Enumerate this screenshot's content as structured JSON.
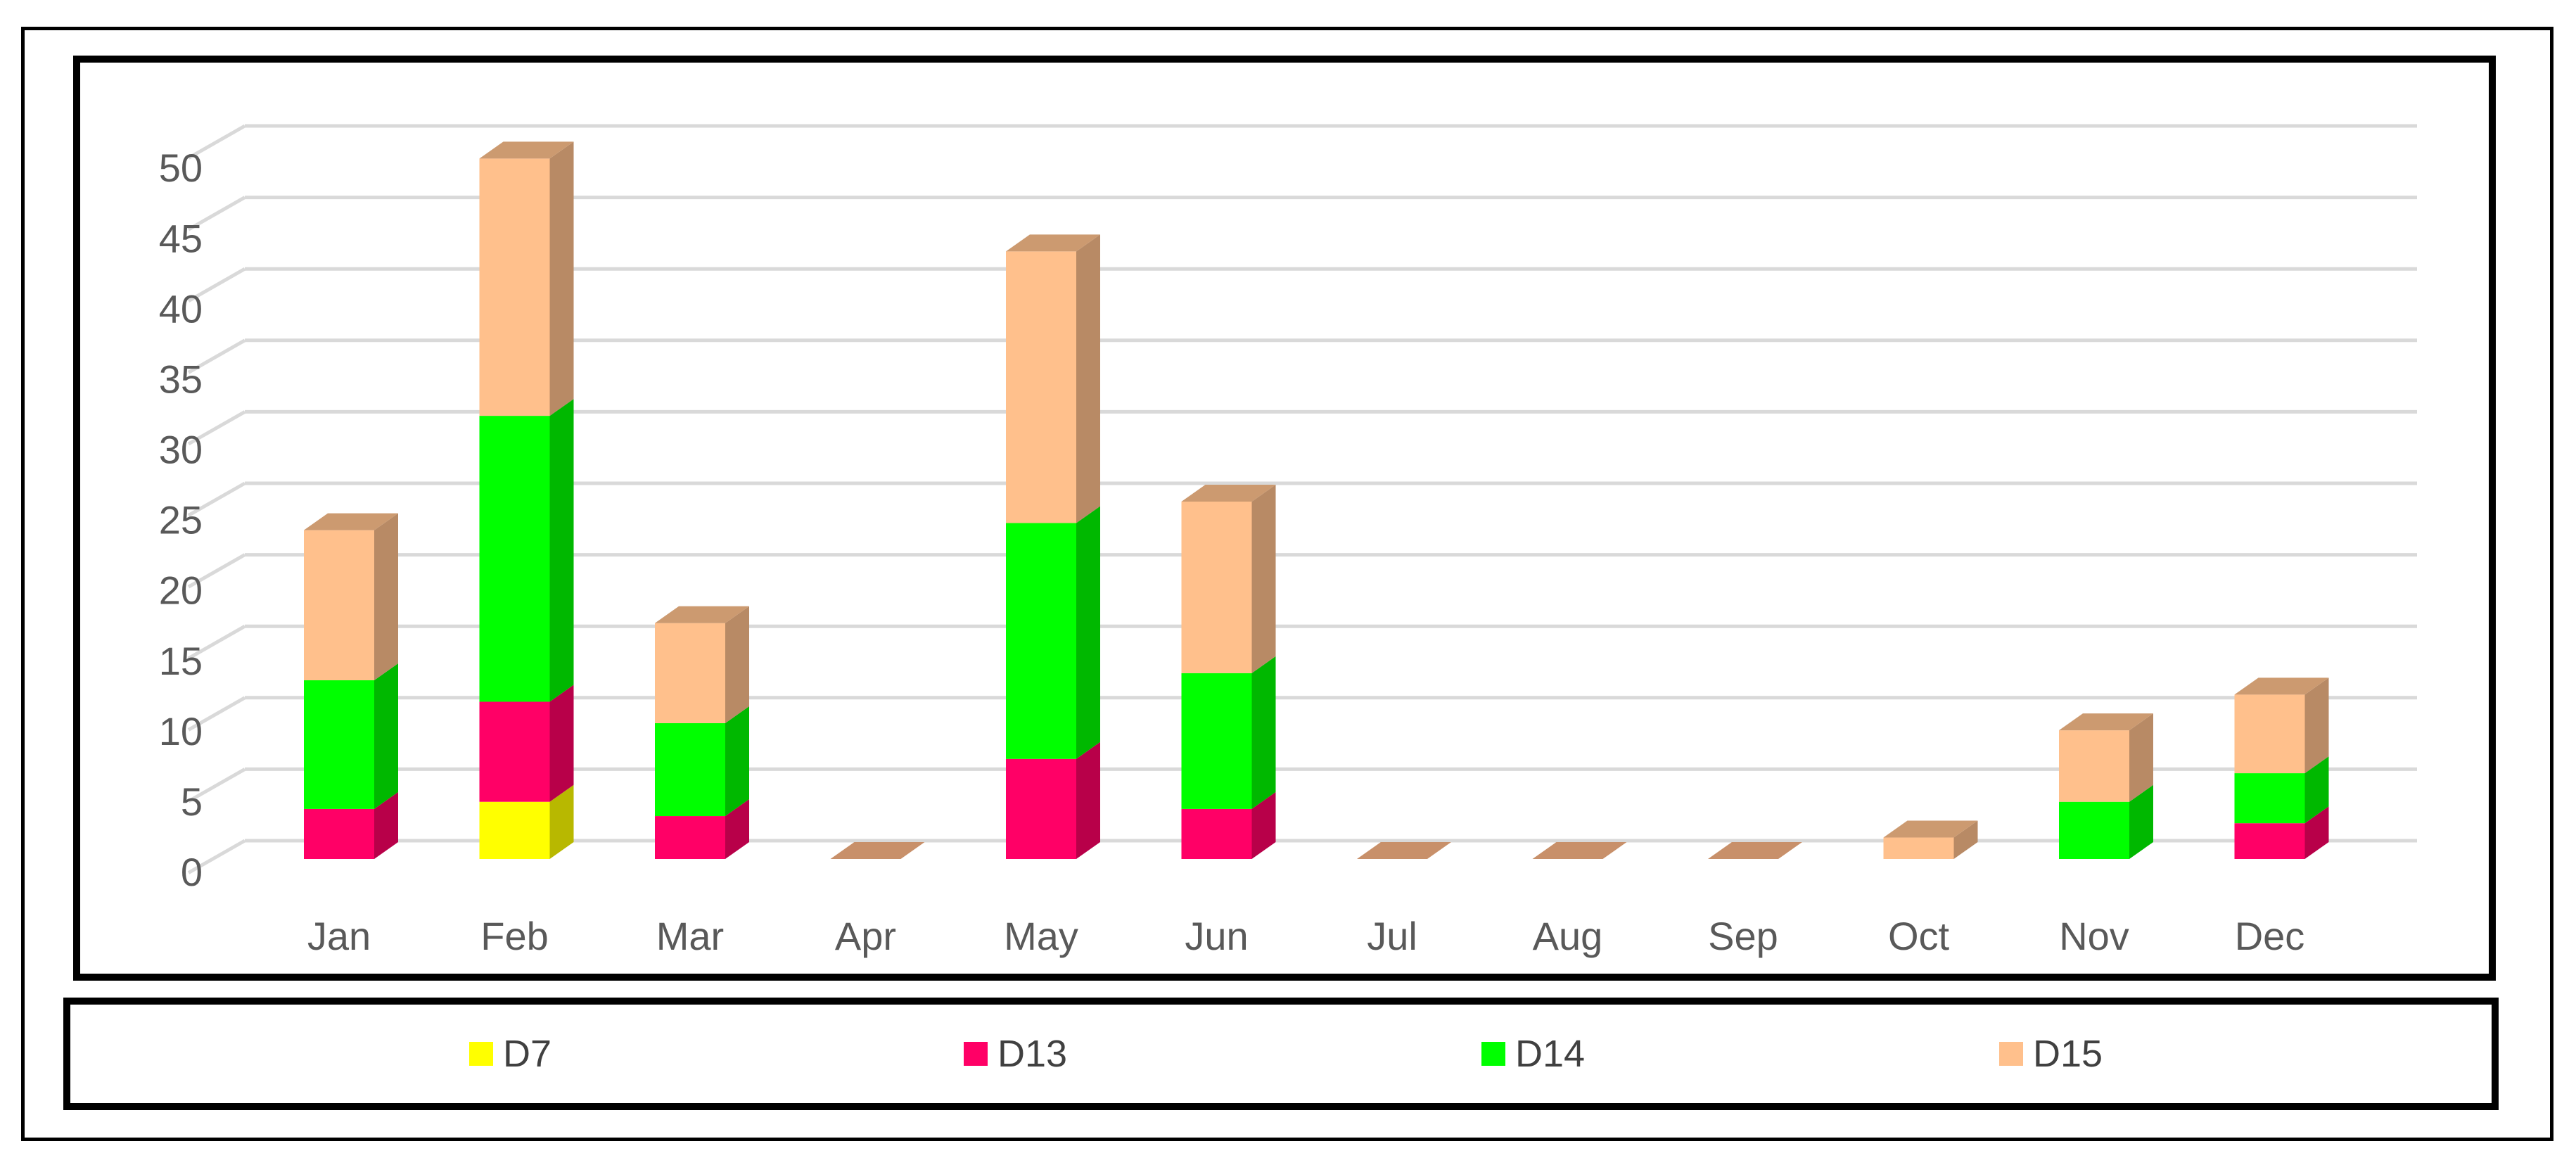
{
  "chart_data": {
    "type": "bar",
    "stacked": true,
    "style": "3d-column",
    "categories": [
      "Jan",
      "Feb",
      "Mar",
      "Apr",
      "May",
      "Jun",
      "Jul",
      "Aug",
      "Sep",
      "Oct",
      "Nov",
      "Dec"
    ],
    "series": [
      {
        "name": "D7",
        "color": "#FFFF00",
        "values": [
          0,
          4,
          0,
          0,
          0,
          0,
          0,
          0,
          0,
          0,
          0,
          0
        ]
      },
      {
        "name": "D13",
        "color": "#FF0066",
        "values": [
          3.5,
          7,
          3,
          0,
          7,
          3.5,
          0,
          0,
          0,
          0,
          0,
          2.5
        ]
      },
      {
        "name": "D14",
        "color": "#00FF00",
        "values": [
          9,
          20,
          6.5,
          0,
          16.5,
          9.5,
          0,
          0,
          0,
          0,
          4,
          3.5
        ]
      },
      {
        "name": "D15",
        "color": "#FFC08C",
        "values": [
          10.5,
          18,
          7,
          0,
          19,
          12,
          0,
          0,
          0,
          1.5,
          5,
          5.5
        ]
      }
    ],
    "yticks": [
      "0",
      "5",
      "10",
      "15",
      "20",
      "25",
      "30",
      "35",
      "40",
      "45",
      "50"
    ],
    "ylim": [
      0,
      50
    ],
    "grid": true,
    "legend_position": "bottom"
  }
}
